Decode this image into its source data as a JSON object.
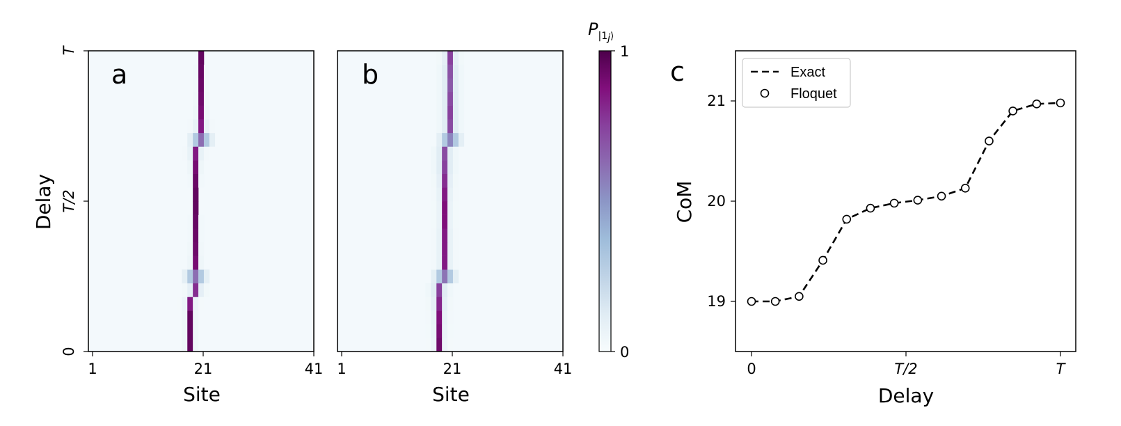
{
  "colors": {
    "cmap_low": "#f7fcfd",
    "cmap_mid": "#8c96c6",
    "cmap_high": "#4d004b"
  },
  "chart_data": [
    {
      "type": "heatmap",
      "panel_label": "a",
      "xlabel": "Site",
      "ylabel": "Delay",
      "xticks": [
        "1",
        "21",
        "41"
      ],
      "yticks": [
        "0",
        "T/2",
        "T"
      ],
      "rows_bottom_to_top": [
        {
          "peak": 19,
          "v": 0.95,
          "s": 0.05
        },
        {
          "peak": 19,
          "v": 0.95,
          "s": 0.05
        },
        {
          "peak": 19,
          "v": 0.95,
          "s": 0.05
        },
        {
          "peak": 19,
          "v": 0.85,
          "s": 0.06
        },
        {
          "peak": 20,
          "v": 0.8,
          "s": 0.1
        },
        {
          "peak": 20,
          "v": 0.62,
          "s": 0.3
        },
        {
          "peak": 20,
          "v": 0.9,
          "s": 0.05
        },
        {
          "peak": 20,
          "v": 0.92,
          "s": 0.04
        },
        {
          "peak": 20,
          "v": 0.93,
          "s": 0.03
        },
        {
          "peak": 20,
          "v": 0.94,
          "s": 0.03
        },
        {
          "peak": 20,
          "v": 0.95,
          "s": 0.02
        },
        {
          "peak": 20,
          "v": 0.95,
          "s": 0.02
        },
        {
          "peak": 20,
          "v": 0.93,
          "s": 0.03
        },
        {
          "peak": 20,
          "v": 0.9,
          "s": 0.05
        },
        {
          "peak": 20,
          "v": 0.85,
          "s": 0.08
        },
        {
          "peak": 21,
          "v": 0.62,
          "s": 0.3
        },
        {
          "peak": 21,
          "v": 0.85,
          "s": 0.08
        },
        {
          "peak": 21,
          "v": 0.9,
          "s": 0.05
        },
        {
          "peak": 21,
          "v": 0.92,
          "s": 0.04
        },
        {
          "peak": 21,
          "v": 0.93,
          "s": 0.03
        },
        {
          "peak": 21,
          "v": 0.94,
          "s": 0.03
        },
        {
          "peak": 21,
          "v": 0.95,
          "s": 0.02
        }
      ]
    },
    {
      "type": "heatmap",
      "panel_label": "b",
      "xlabel": "Site",
      "ylabel": "",
      "xticks": [
        "1",
        "21",
        "41"
      ],
      "yticks": [],
      "rows_bottom_to_top": [
        {
          "peak": 19,
          "v": 0.92,
          "s": 0.06
        },
        {
          "peak": 19,
          "v": 0.9,
          "s": 0.07
        },
        {
          "peak": 19,
          "v": 0.88,
          "s": 0.08
        },
        {
          "peak": 19,
          "v": 0.82,
          "s": 0.1
        },
        {
          "peak": 19,
          "v": 0.75,
          "s": 0.12
        },
        {
          "peak": 20,
          "v": 0.6,
          "s": 0.3
        },
        {
          "peak": 20,
          "v": 0.85,
          "s": 0.08
        },
        {
          "peak": 20,
          "v": 0.85,
          "s": 0.08
        },
        {
          "peak": 20,
          "v": 0.85,
          "s": 0.08
        },
        {
          "peak": 20,
          "v": 0.88,
          "s": 0.07
        },
        {
          "peak": 20,
          "v": 0.88,
          "s": 0.07
        },
        {
          "peak": 20,
          "v": 0.85,
          "s": 0.08
        },
        {
          "peak": 20,
          "v": 0.8,
          "s": 0.1
        },
        {
          "peak": 20,
          "v": 0.75,
          "s": 0.12
        },
        {
          "peak": 20,
          "v": 0.72,
          "s": 0.12
        },
        {
          "peak": 21,
          "v": 0.55,
          "s": 0.3
        },
        {
          "peak": 21,
          "v": 0.72,
          "s": 0.12
        },
        {
          "peak": 21,
          "v": 0.75,
          "s": 0.12
        },
        {
          "peak": 21,
          "v": 0.72,
          "s": 0.12
        },
        {
          "peak": 21,
          "v": 0.68,
          "s": 0.12
        },
        {
          "peak": 21,
          "v": 0.7,
          "s": 0.12
        },
        {
          "peak": 21,
          "v": 0.75,
          "s": 0.1
        }
      ]
    },
    {
      "type": "line",
      "panel_label": "c",
      "xlabel": "Delay",
      "ylabel": "CoM",
      "xticks": [
        "0",
        "T/2",
        "T"
      ],
      "yticks": [
        "19",
        "20",
        "21"
      ],
      "ylim": [
        18.5,
        21.5
      ],
      "series": [
        {
          "name": "Exact",
          "style": "dashed",
          "x": [
            0,
            0.077,
            0.154,
            0.231,
            0.308,
            0.385,
            0.462,
            0.538,
            0.615,
            0.692,
            0.769,
            0.846,
            0.923,
            1.0
          ],
          "y": [
            19.0,
            19.0,
            19.05,
            19.41,
            19.82,
            19.93,
            19.98,
            20.01,
            20.05,
            20.13,
            20.6,
            20.9,
            20.97,
            20.98
          ]
        },
        {
          "name": "Floquet",
          "style": "open-circle",
          "x": [
            0,
            0.077,
            0.154,
            0.231,
            0.308,
            0.385,
            0.462,
            0.538,
            0.615,
            0.692,
            0.769,
            0.846,
            0.923,
            1.0
          ],
          "y": [
            19.0,
            19.0,
            19.05,
            19.41,
            19.82,
            19.93,
            19.98,
            20.01,
            20.05,
            20.13,
            20.6,
            20.9,
            20.97,
            20.98
          ]
        }
      ],
      "legend_position": "top-left"
    }
  ],
  "colorbar": {
    "title": "P",
    "title_sub": "|1",
    "title_sub_j": "j",
    "title_sub_end": "⟩",
    "min_label": "0",
    "max_label": "1"
  }
}
